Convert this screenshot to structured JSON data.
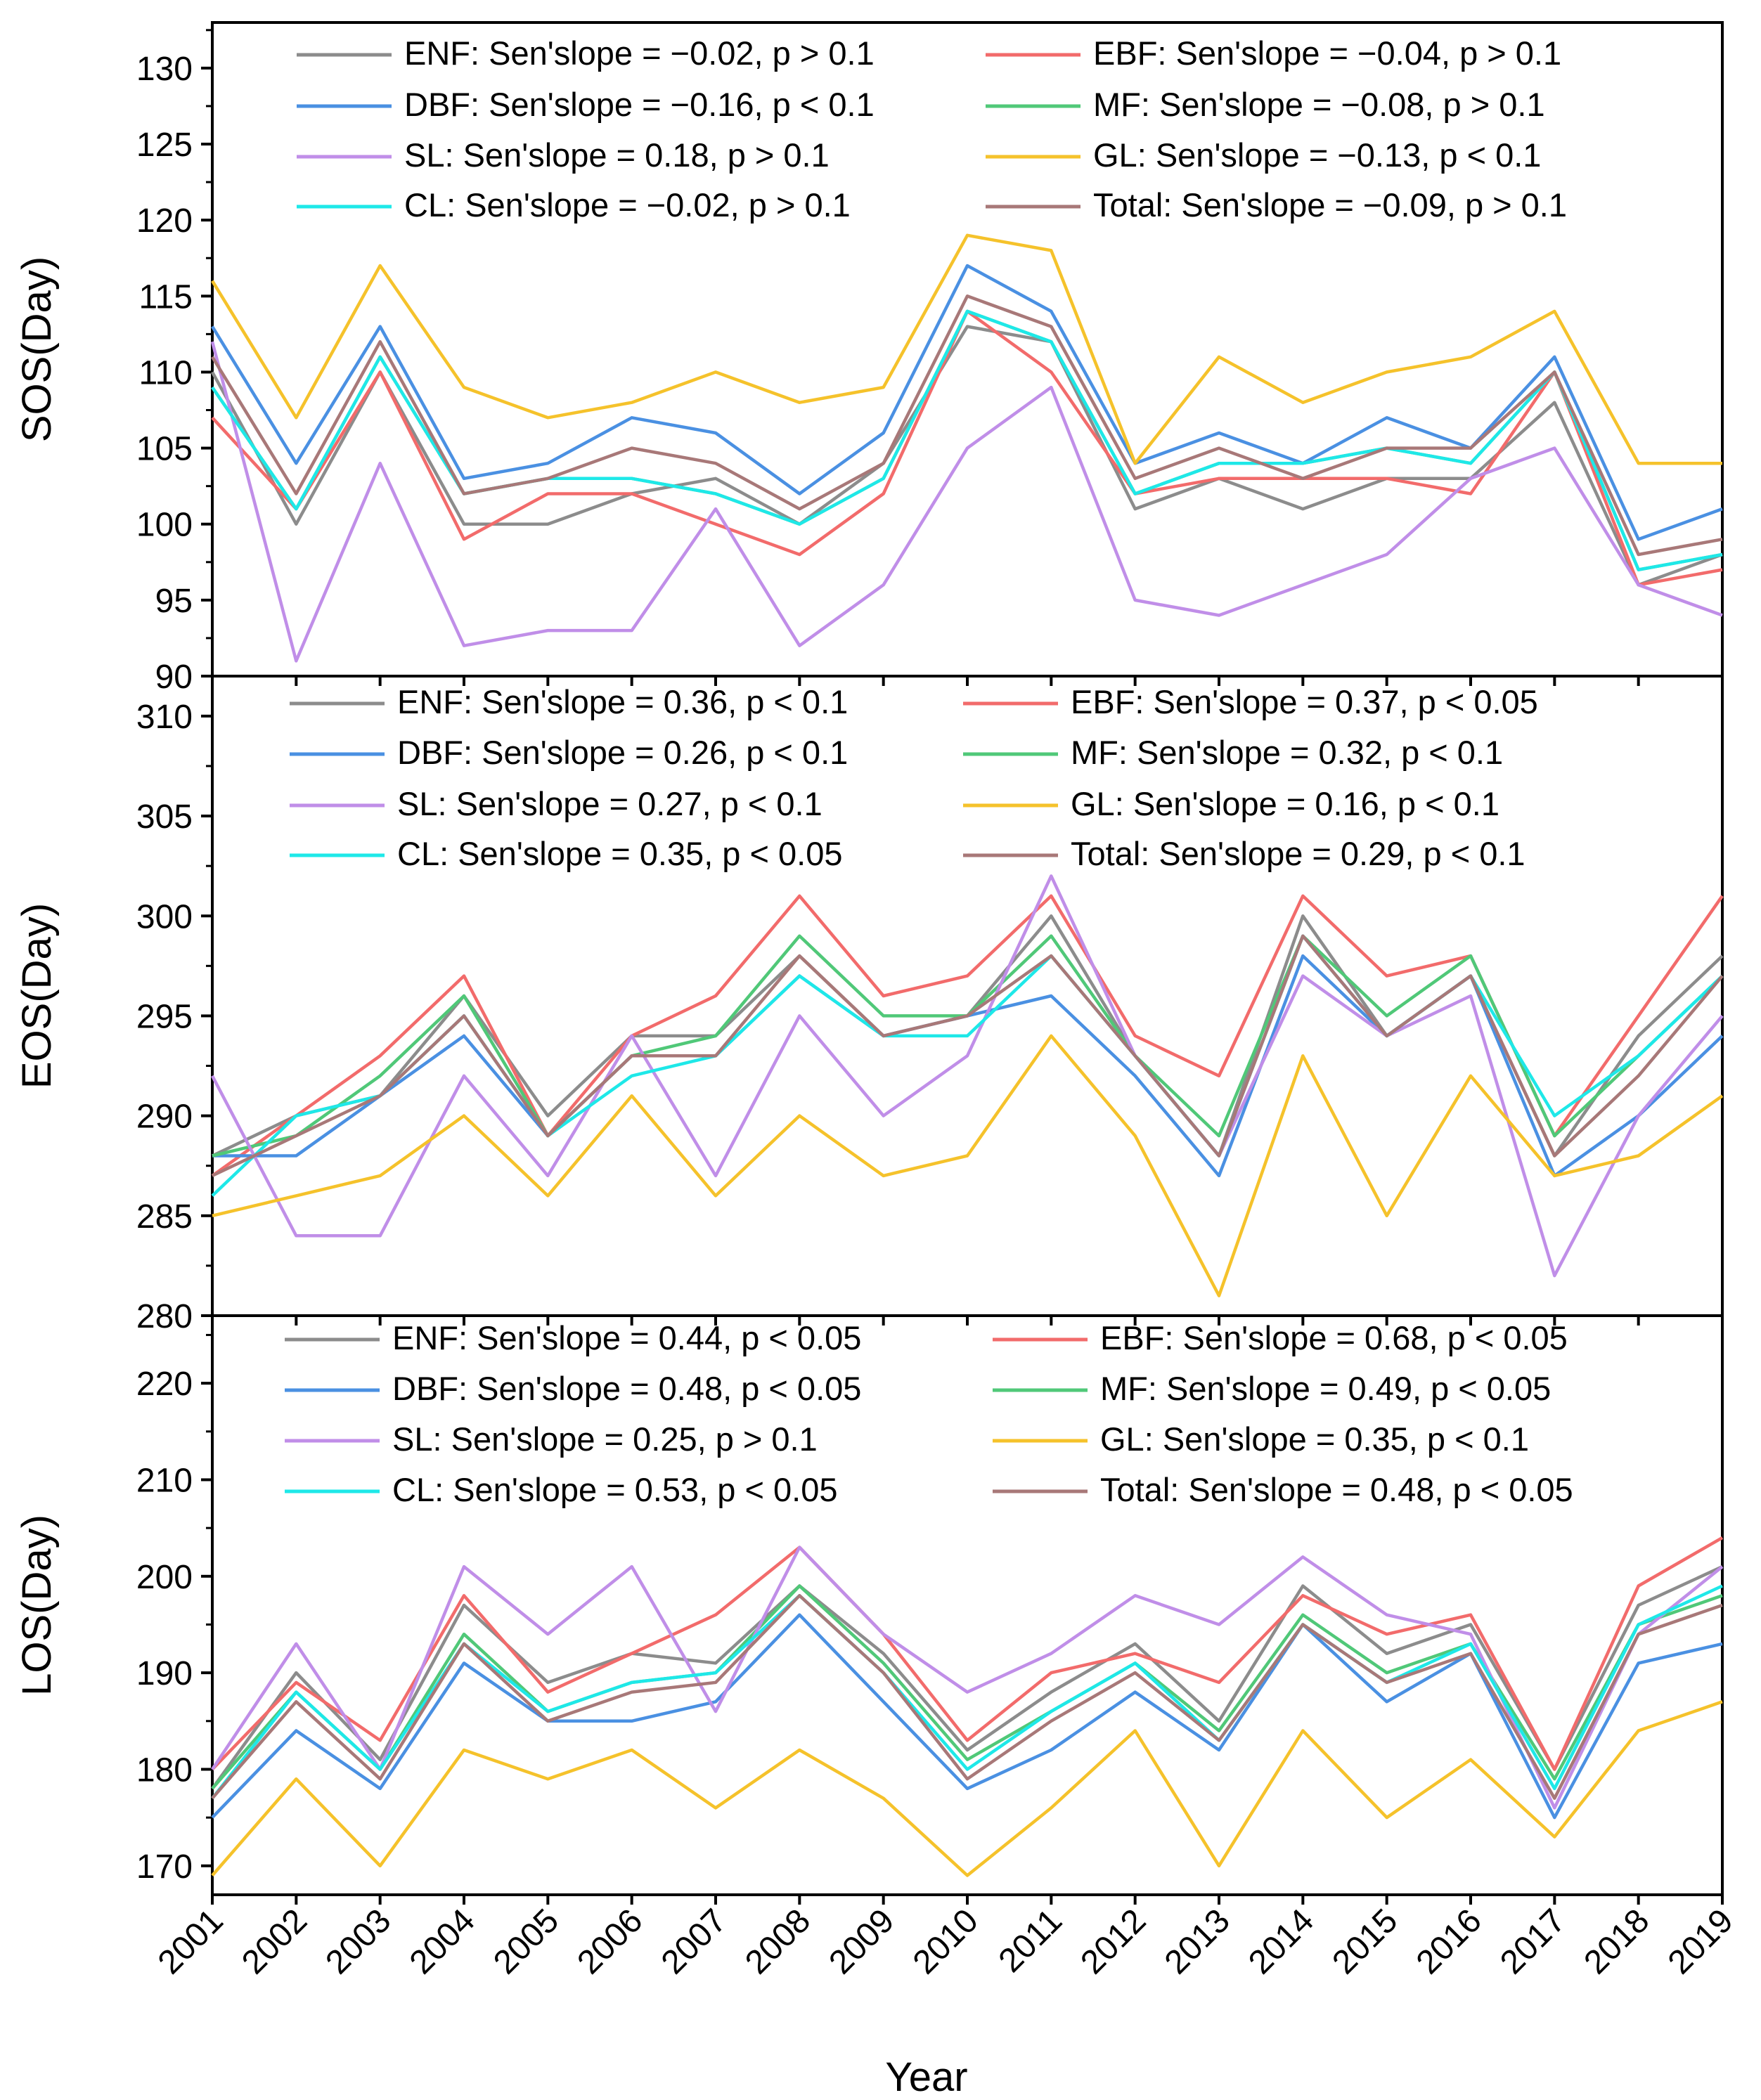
{
  "chart_data": [
    {
      "type": "line",
      "ylabel": "SOS(Day)",
      "ylim": [
        90,
        133
      ],
      "yticks": [
        90,
        95,
        100,
        105,
        110,
        115,
        120,
        125,
        130
      ],
      "x": [
        2001,
        2002,
        2003,
        2004,
        2005,
        2006,
        2007,
        2008,
        2009,
        2010,
        2011,
        2012,
        2013,
        2014,
        2015,
        2016,
        2017,
        2018,
        2019
      ],
      "legend": [
        "ENF: Sen'slope = −0.02, p > 0.1",
        "EBF: Sen'slope = −0.04, p > 0.1",
        "DBF: Sen'slope = −0.16, p < 0.1",
        "MF: Sen'slope = −0.08, p > 0.1",
        "SL: Sen'slope = 0.18, p > 0.1",
        "GL: Sen'slope = −0.13, p < 0.1",
        "CL: Sen'slope = −0.02, p > 0.1",
        "Total: Sen'slope = −0.09, p > 0.1"
      ],
      "series": [
        {
          "name": "ENF",
          "color": "#8c8c8c",
          "values": [
            110,
            100,
            110,
            100,
            100,
            102,
            103,
            100,
            104,
            113,
            112,
            101,
            103,
            101,
            103,
            103,
            108,
            96,
            98
          ]
        },
        {
          "name": "EBF",
          "color": "#f26b6b",
          "values": [
            107,
            101,
            110,
            99,
            102,
            102,
            100,
            98,
            102,
            114,
            110,
            102,
            103,
            103,
            103,
            102,
            110,
            96,
            97
          ]
        },
        {
          "name": "DBF",
          "color": "#4a90e2",
          "values": [
            113,
            104,
            113,
            103,
            104,
            107,
            106,
            102,
            106,
            117,
            114,
            104,
            106,
            104,
            107,
            105,
            111,
            99,
            101
          ]
        },
        {
          "name": "MF",
          "color": "#50c878",
          "values": [
            109,
            101,
            111,
            102,
            103,
            103,
            102,
            100,
            103,
            114,
            112,
            102,
            104,
            104,
            105,
            104,
            110,
            97,
            98
          ]
        },
        {
          "name": "SL",
          "color": "#c08ee8",
          "values": [
            112,
            91,
            104,
            92,
            93,
            93,
            101,
            92,
            96,
            105,
            109,
            95,
            94,
            96,
            98,
            103,
            105,
            96,
            94
          ]
        },
        {
          "name": "GL",
          "color": "#f5c22b",
          "values": [
            116,
            107,
            117,
            109,
            107,
            108,
            110,
            108,
            109,
            119,
            118,
            104,
            111,
            108,
            110,
            111,
            114,
            104,
            104
          ]
        },
        {
          "name": "CL",
          "color": "#1ee8e8",
          "values": [
            109,
            101,
            111,
            102,
            103,
            103,
            102,
            100,
            103,
            114,
            112,
            102,
            104,
            104,
            105,
            104,
            110,
            97,
            98
          ]
        },
        {
          "name": "Total",
          "color": "#a87878",
          "values": [
            111,
            102,
            112,
            102,
            103,
            105,
            104,
            101,
            104,
            115,
            113,
            103,
            105,
            103,
            105,
            105,
            110,
            98,
            99
          ]
        }
      ]
    },
    {
      "type": "line",
      "ylabel": "EOS(Day)",
      "ylim": [
        280,
        312
      ],
      "yticks": [
        280,
        285,
        290,
        295,
        300,
        305,
        310
      ],
      "x": [
        2001,
        2002,
        2003,
        2004,
        2005,
        2006,
        2007,
        2008,
        2009,
        2010,
        2011,
        2012,
        2013,
        2014,
        2015,
        2016,
        2017,
        2018,
        2019
      ],
      "legend": [
        "ENF: Sen'slope = 0.36, p < 0.1",
        "EBF: Sen'slope = 0.37, p < 0.05",
        "DBF: Sen'slope = 0.26, p < 0.1",
        "MF: Sen'slope = 0.32, p < 0.1",
        "SL: Sen'slope = 0.27, p < 0.1",
        "GL: Sen'slope = 0.16, p < 0.1",
        "CL: Sen'slope = 0.35, p < 0.05",
        "Total: Sen'slope = 0.29, p < 0.1"
      ],
      "series": [
        {
          "name": "ENF",
          "color": "#8c8c8c",
          "values": [
            288,
            290,
            291,
            296,
            290,
            294,
            294,
            298,
            294,
            295,
            300,
            293,
            288,
            300,
            294,
            297,
            288,
            294,
            298
          ]
        },
        {
          "name": "EBF",
          "color": "#f26b6b",
          "values": [
            287,
            290,
            293,
            297,
            289,
            294,
            296,
            301,
            296,
            297,
            301,
            294,
            292,
            301,
            297,
            298,
            289,
            295,
            301
          ]
        },
        {
          "name": "DBF",
          "color": "#4a90e2",
          "values": [
            288,
            288,
            291,
            294,
            289,
            293,
            293,
            297,
            294,
            295,
            296,
            292,
            287,
            298,
            294,
            297,
            287,
            290,
            294
          ]
        },
        {
          "name": "MF",
          "color": "#50c878",
          "values": [
            288,
            289,
            292,
            296,
            289,
            293,
            294,
            299,
            295,
            295,
            299,
            293,
            289,
            299,
            295,
            298,
            289,
            293,
            297
          ]
        },
        {
          "name": "SL",
          "color": "#c08ee8",
          "values": [
            292,
            284,
            284,
            292,
            287,
            294,
            287,
            295,
            290,
            293,
            302,
            293,
            288,
            297,
            294,
            296,
            282,
            290,
            295
          ]
        },
        {
          "name": "GL",
          "color": "#f5c22b",
          "values": [
            285,
            286,
            287,
            290,
            286,
            291,
            286,
            290,
            287,
            288,
            294,
            289,
            281,
            293,
            285,
            292,
            287,
            288,
            291
          ]
        },
        {
          "name": "CL",
          "color": "#1ee8e8",
          "values": [
            286,
            290,
            291,
            295,
            289,
            292,
            293,
            297,
            294,
            294,
            298,
            293,
            288,
            299,
            294,
            297,
            290,
            293,
            297
          ]
        },
        {
          "name": "Total",
          "color": "#a87878",
          "values": [
            287,
            289,
            291,
            295,
            289,
            293,
            293,
            298,
            294,
            295,
            298,
            293,
            288,
            299,
            294,
            297,
            288,
            292,
            297
          ]
        }
      ]
    },
    {
      "type": "line",
      "ylabel": "LOS(Day)",
      "ylim": [
        167,
        227
      ],
      "yticks": [
        170,
        180,
        190,
        200,
        210,
        220
      ],
      "x": [
        2001,
        2002,
        2003,
        2004,
        2005,
        2006,
        2007,
        2008,
        2009,
        2010,
        2011,
        2012,
        2013,
        2014,
        2015,
        2016,
        2017,
        2018,
        2019
      ],
      "xticklabels": [
        "2001",
        "2002",
        "2003",
        "2004",
        "2005",
        "2006",
        "2007",
        "2008",
        "2009",
        "2010",
        "2011",
        "2012",
        "2013",
        "2014",
        "2015",
        "2016",
        "2017",
        "2018",
        "2019"
      ],
      "xlabel": "Year",
      "legend": [
        "ENF: Sen'slope = 0.44, p < 0.05",
        "EBF: Sen'slope = 0.68, p < 0.05",
        "DBF: Sen'slope = 0.48, p < 0.05",
        "MF: Sen'slope = 0.49, p < 0.05",
        "SL: Sen'slope = 0.25, p > 0.1",
        "GL: Sen'slope = 0.35, p < 0.1",
        "CL: Sen'slope = 0.53, p < 0.05",
        "Total: Sen'slope = 0.48, p < 0.05"
      ],
      "series": [
        {
          "name": "ENF",
          "color": "#8c8c8c",
          "values": [
            178,
            190,
            181,
            197,
            189,
            192,
            191,
            199,
            192,
            182,
            188,
            193,
            185,
            199,
            192,
            195,
            180,
            197,
            201
          ]
        },
        {
          "name": "EBF",
          "color": "#f26b6b",
          "values": [
            180,
            189,
            183,
            198,
            188,
            192,
            196,
            203,
            194,
            183,
            190,
            192,
            189,
            198,
            194,
            196,
            180,
            199,
            204
          ]
        },
        {
          "name": "DBF",
          "color": "#4a90e2",
          "values": [
            175,
            184,
            178,
            191,
            185,
            185,
            187,
            196,
            187,
            178,
            182,
            188,
            182,
            195,
            187,
            192,
            175,
            191,
            193
          ]
        },
        {
          "name": "MF",
          "color": "#50c878",
          "values": [
            178,
            188,
            180,
            194,
            186,
            189,
            190,
            199,
            191,
            181,
            186,
            191,
            184,
            196,
            190,
            193,
            179,
            195,
            198
          ]
        },
        {
          "name": "SL",
          "color": "#c08ee8",
          "values": [
            180,
            193,
            180,
            201,
            194,
            201,
            186,
            203,
            194,
            188,
            192,
            198,
            195,
            202,
            196,
            194,
            176,
            194,
            201
          ]
        },
        {
          "name": "GL",
          "color": "#f5c22b",
          "values": [
            169,
            179,
            170,
            182,
            179,
            182,
            176,
            182,
            177,
            169,
            176,
            184,
            170,
            184,
            175,
            181,
            173,
            184,
            187
          ]
        },
        {
          "name": "CL",
          "color": "#1ee8e8",
          "values": [
            177,
            188,
            180,
            193,
            186,
            189,
            190,
            198,
            190,
            180,
            186,
            191,
            183,
            195,
            189,
            193,
            178,
            195,
            199
          ]
        },
        {
          "name": "Total",
          "color": "#a87878",
          "values": [
            177,
            187,
            179,
            193,
            185,
            188,
            189,
            198,
            190,
            179,
            185,
            190,
            183,
            195,
            189,
            192,
            177,
            194,
            197
          ]
        }
      ]
    }
  ]
}
